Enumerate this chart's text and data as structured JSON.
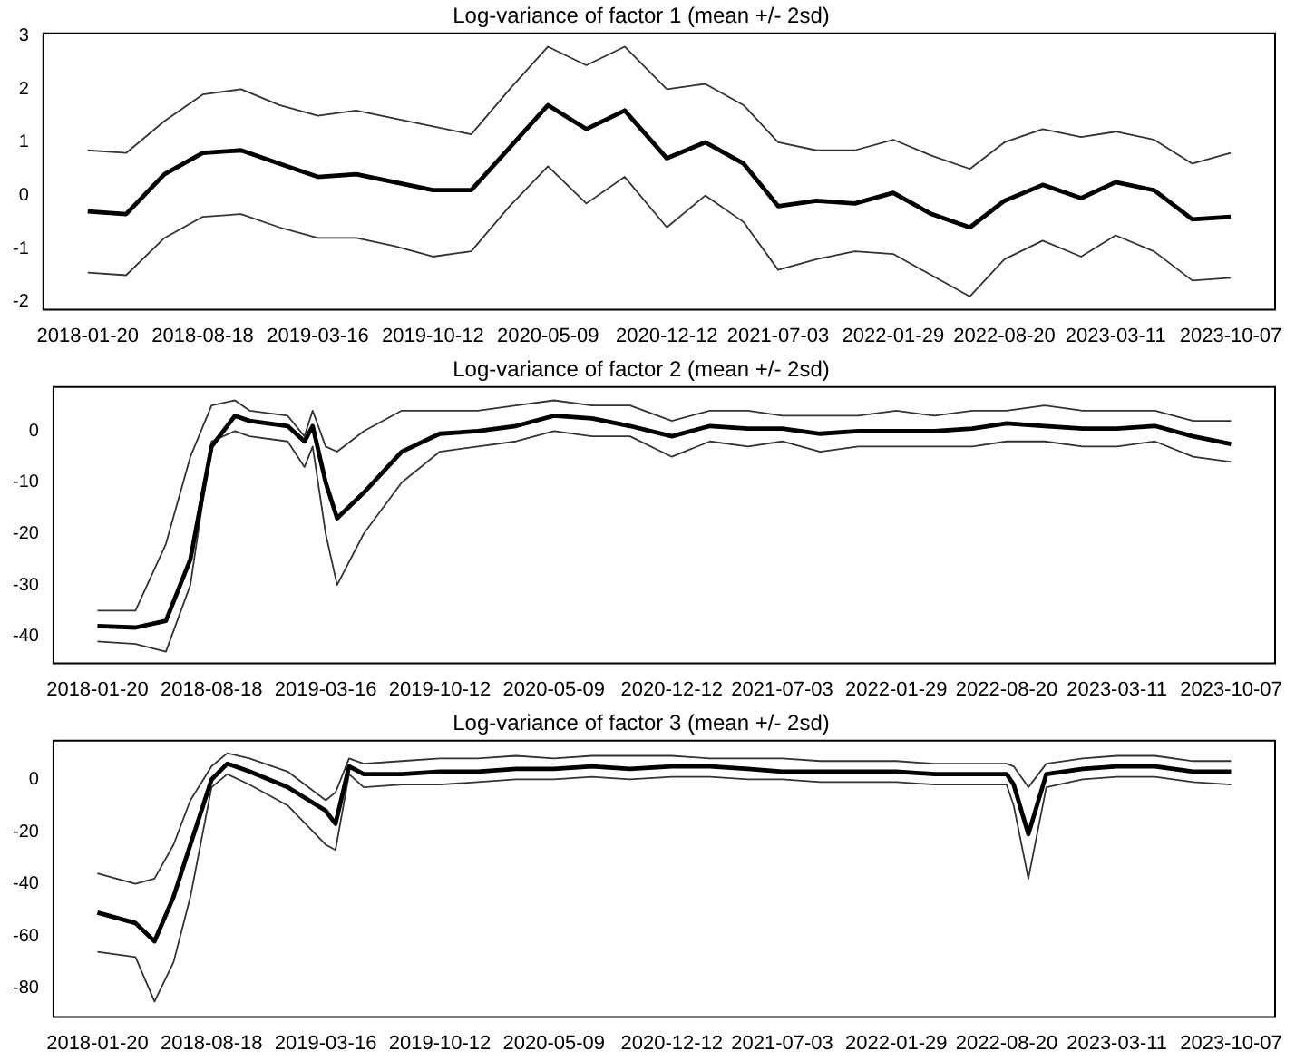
{
  "chart_data": [
    {
      "type": "line",
      "title": "Log-variance of factor 1 (mean +/- 2sd)",
      "xlim": [
        "2017-10-31",
        "2023-12-27"
      ],
      "xticks": [
        "2018-01-20",
        "2018-08-18",
        "2019-03-16",
        "2019-10-12",
        "2020-05-09",
        "2020-12-12",
        "2021-07-03",
        "2022-01-29",
        "2022-08-20",
        "2023-03-11",
        "2023-10-07"
      ],
      "ylim": [
        -2.15,
        3.05
      ],
      "yticks": [
        -2,
        -1,
        0,
        1,
        2,
        3
      ],
      "x": [
        "2018-01-20",
        "2018-03-31",
        "2018-06-09",
        "2018-08-18",
        "2018-10-27",
        "2019-01-05",
        "2019-03-16",
        "2019-05-25",
        "2019-08-03",
        "2019-10-12",
        "2019-12-21",
        "2020-02-29",
        "2020-05-09",
        "2020-07-18",
        "2020-09-26",
        "2020-12-12",
        "2021-02-20",
        "2021-05-01",
        "2021-07-03",
        "2021-09-11",
        "2021-11-20",
        "2022-01-29",
        "2022-04-09",
        "2022-06-18",
        "2022-08-20",
        "2022-10-29",
        "2023-01-07",
        "2023-03-11",
        "2023-05-20",
        "2023-07-29",
        "2023-10-07"
      ],
      "series": [
        {
          "color": "#333333",
          "values": [
            0.85,
            0.8,
            1.4,
            1.9,
            2.0,
            1.7,
            1.5,
            1.6,
            1.45,
            1.3,
            1.15,
            2.0,
            2.8,
            2.45,
            2.8,
            2.0,
            2.1,
            1.7,
            1.0,
            0.85,
            0.85,
            1.05,
            0.75,
            0.5,
            1.0,
            1.25,
            1.1,
            1.2,
            1.05,
            0.6,
            0.8
          ]
        },
        {
          "color": "#000000",
          "values": [
            -0.3,
            -0.35,
            0.4,
            0.8,
            0.85,
            0.6,
            0.35,
            0.4,
            0.25,
            0.1,
            0.1,
            0.9,
            1.7,
            1.25,
            1.6,
            0.7,
            1.0,
            0.6,
            -0.2,
            -0.1,
            -0.15,
            0.05,
            -0.35,
            -0.6,
            -0.1,
            0.2,
            -0.05,
            0.25,
            0.1,
            -0.45,
            -0.4
          ]
        },
        {
          "color": "#333333",
          "values": [
            -1.45,
            -1.5,
            -0.8,
            -0.4,
            -0.35,
            -0.6,
            -0.8,
            -0.8,
            -0.95,
            -1.15,
            -1.05,
            -0.2,
            0.55,
            -0.15,
            0.35,
            -0.6,
            0.0,
            -0.5,
            -1.4,
            -1.2,
            -1.05,
            -1.1,
            -1.5,
            -1.9,
            -1.2,
            -0.85,
            -1.15,
            -0.75,
            -1.05,
            -1.6,
            -1.55
          ]
        }
      ]
    },
    {
      "type": "line",
      "title": "Log-variance of factor 2 (mean +/- 2sd)",
      "xlim": [
        "2017-10-31",
        "2023-12-27"
      ],
      "xticks": [
        "2018-01-20",
        "2018-08-18",
        "2019-03-16",
        "2019-10-12",
        "2020-05-09",
        "2020-12-12",
        "2021-07-03",
        "2022-01-29",
        "2022-08-20",
        "2023-03-11",
        "2023-10-07"
      ],
      "ylim": [
        -45.3,
        8.6
      ],
      "yticks": [
        -40,
        -30,
        -20,
        -10,
        0
      ],
      "x": [
        "2018-01-20",
        "2018-03-31",
        "2018-05-26",
        "2018-07-10",
        "2018-08-18",
        "2018-09-30",
        "2018-10-27",
        "2019-01-05",
        "2019-02-05",
        "2019-02-20",
        "2019-03-16",
        "2019-04-06",
        "2019-05-25",
        "2019-08-03",
        "2019-10-12",
        "2019-12-21",
        "2020-02-29",
        "2020-05-09",
        "2020-07-18",
        "2020-09-26",
        "2020-12-12",
        "2021-02-20",
        "2021-05-01",
        "2021-07-03",
        "2021-09-11",
        "2021-11-20",
        "2022-01-29",
        "2022-04-09",
        "2022-06-18",
        "2022-08-20",
        "2022-10-29",
        "2023-01-07",
        "2023-03-11",
        "2023-05-20",
        "2023-07-29",
        "2023-10-07"
      ],
      "series": [
        {
          "color": "#333333",
          "values": [
            -35,
            -35,
            -22,
            -5,
            5,
            6,
            4,
            3,
            -1,
            4,
            -3,
            -4,
            0,
            4,
            4,
            4,
            5,
            6,
            5,
            5,
            2,
            4,
            4,
            3,
            3,
            3,
            4,
            3,
            4,
            4,
            5,
            4,
            4,
            4,
            2,
            2
          ]
        },
        {
          "color": "#000000",
          "values": [
            -38,
            -38.3,
            -37,
            -25,
            -3,
            3,
            2,
            1,
            -2,
            1,
            -10,
            -17,
            -12,
            -4,
            -0.5,
            0,
            1,
            3,
            2.5,
            1,
            -1,
            1,
            0.5,
            0.5,
            -0.5,
            0,
            0,
            0,
            0.5,
            1.5,
            1,
            0.5,
            0.5,
            1,
            -1,
            -2.5
          ]
        },
        {
          "color": "#333333",
          "values": [
            -41,
            -41.5,
            -43,
            -30,
            -2,
            0,
            -1,
            -2,
            -7,
            -3,
            -20,
            -30,
            -20,
            -10,
            -4,
            -3,
            -2,
            0,
            -1,
            -1,
            -5,
            -2,
            -3,
            -2,
            -4,
            -3,
            -3,
            -3,
            -3,
            -2,
            -2,
            -3,
            -3,
            -2,
            -5,
            -6
          ]
        }
      ]
    },
    {
      "type": "line",
      "title": "Log-variance of factor 3 (mean +/- 2sd)",
      "xlim": [
        "2017-10-31",
        "2023-12-27"
      ],
      "xticks": [
        "2018-01-20",
        "2018-08-18",
        "2019-03-16",
        "2019-10-12",
        "2020-05-09",
        "2020-12-12",
        "2021-07-03",
        "2022-01-29",
        "2022-08-20",
        "2023-03-11",
        "2023-10-07"
      ],
      "ylim": [
        -91,
        14.8
      ],
      "yticks": [
        -80,
        -60,
        -40,
        -20,
        0
      ],
      "x": [
        "2018-01-20",
        "2018-03-31",
        "2018-05-05",
        "2018-06-09",
        "2018-07-10",
        "2018-08-18",
        "2018-09-16",
        "2018-10-27",
        "2019-01-05",
        "2019-03-16",
        "2019-04-03",
        "2019-04-28",
        "2019-05-25",
        "2019-08-03",
        "2019-10-12",
        "2019-12-21",
        "2020-02-29",
        "2020-05-09",
        "2020-07-18",
        "2020-09-26",
        "2020-12-12",
        "2021-02-20",
        "2021-05-01",
        "2021-07-03",
        "2021-09-11",
        "2021-11-20",
        "2022-01-29",
        "2022-04-09",
        "2022-06-18",
        "2022-08-20",
        "2022-09-02",
        "2022-09-29",
        "2022-11-01",
        "2023-01-07",
        "2023-03-11",
        "2023-05-20",
        "2023-07-29",
        "2023-10-07"
      ],
      "series": [
        {
          "color": "#333333",
          "values": [
            -36,
            -40,
            -38,
            -25,
            -8,
            5,
            10,
            8,
            3,
            -8,
            -5,
            8,
            6,
            7,
            8,
            8,
            9,
            8,
            9,
            9,
            9,
            8,
            8,
            8,
            7,
            7,
            7,
            6,
            6,
            6,
            5,
            -3,
            6,
            8,
            9,
            9,
            7,
            7
          ]
        },
        {
          "color": "#000000",
          "values": [
            -51,
            -55,
            -62,
            -45,
            -25,
            0,
            6,
            3,
            -3,
            -12,
            -17,
            5,
            2,
            2,
            3,
            3,
            4,
            4,
            5,
            4,
            5,
            5,
            4,
            3,
            3,
            3,
            3,
            2,
            2,
            2,
            -2,
            -21,
            2,
            4,
            5,
            5,
            3,
            3
          ]
        },
        {
          "color": "#333333",
          "values": [
            -66,
            -68,
            -85,
            -70,
            -45,
            -3,
            2,
            -2,
            -10,
            -25,
            -27,
            2,
            -3,
            -2,
            -2,
            -1,
            0,
            0,
            1,
            0,
            1,
            1,
            0,
            0,
            -1,
            -1,
            -1,
            -2,
            -2,
            -2,
            -10,
            -38,
            -3,
            0,
            1,
            1,
            -1,
            -2
          ]
        }
      ]
    }
  ]
}
